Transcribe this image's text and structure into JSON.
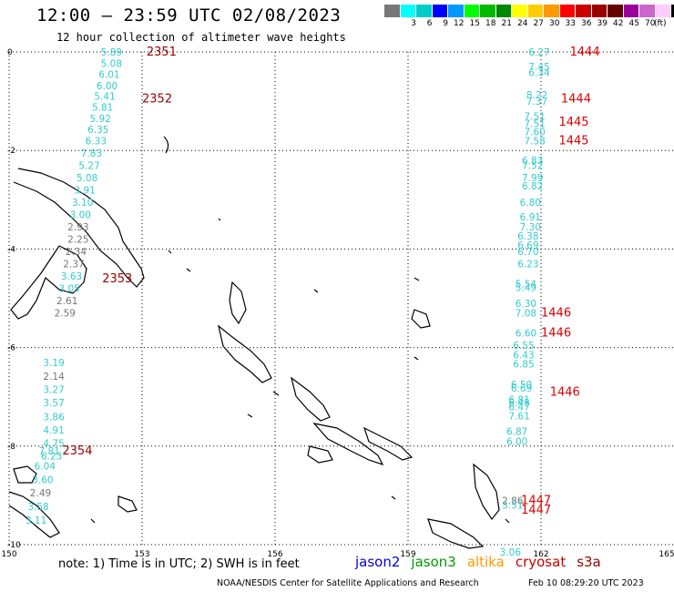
{
  "header": {
    "title": "12:00 – 23:59 UTC 02/08/2023",
    "subtitle": "12 hour collection of altimeter wave heights"
  },
  "colorbar": {
    "colors": [
      "#777777",
      "#00ffff",
      "#00cccc",
      "#0000ff",
      "#0099ff",
      "#00ff00",
      "#00bb00",
      "#008800",
      "#ffff00",
      "#ffcc00",
      "#ff9900",
      "#ff0000",
      "#cc0000",
      "#990000",
      "#660000",
      "#990099",
      "#cc66cc",
      "#ffccff",
      "#000000"
    ],
    "labels": [
      "3",
      "6",
      "9",
      "12",
      "15",
      "18",
      "21",
      "24",
      "27",
      "30",
      "33",
      "36",
      "39",
      "42",
      "45",
      "70"
    ],
    "unit": "(ft)"
  },
  "axes": {
    "x_ticks": [
      "150",
      "153",
      "156",
      "159",
      "162",
      "165"
    ],
    "y_ticks": [
      "0",
      "-2",
      "-4",
      "-6",
      "-8",
      "-10"
    ]
  },
  "wave_colors": {
    "cyan": "#33cccc",
    "gray": "#777777",
    "pass_left": "#990000",
    "pass_right": "#dd0000"
  },
  "passes": [
    {
      "label": "2351",
      "lon": 153.1,
      "lat": 0.0,
      "color": "pass_left"
    },
    {
      "label": "2352",
      "lon": 153.0,
      "lat": -0.95,
      "color": "pass_left"
    },
    {
      "label": "2353",
      "lon": 152.1,
      "lat": -4.6,
      "color": "pass_left"
    },
    {
      "label": "2354",
      "lon": 151.2,
      "lat": -8.1,
      "color": "pass_left"
    },
    {
      "label": "1444",
      "lon": 162.65,
      "lat": 0.0,
      "color": "pass_right"
    },
    {
      "label": "1444",
      "lon": 162.45,
      "lat": -0.95,
      "color": "pass_right"
    },
    {
      "label": "1445",
      "lon": 162.4,
      "lat": -1.42,
      "color": "pass_right"
    },
    {
      "label": "1445",
      "lon": 162.4,
      "lat": -1.8,
      "color": "pass_right"
    },
    {
      "label": "1446",
      "lon": 162.0,
      "lat": -5.3,
      "color": "pass_right"
    },
    {
      "label": "1446",
      "lon": 162.0,
      "lat": -5.7,
      "color": "pass_right"
    },
    {
      "label": "1446",
      "lon": 162.2,
      "lat": -6.9,
      "color": "pass_right"
    },
    {
      "label": "1447",
      "lon": 161.55,
      "lat": -9.1,
      "color": "pass_right"
    },
    {
      "label": "1447",
      "lon": 161.55,
      "lat": -9.3,
      "color": "pass_right"
    }
  ],
  "wave_heights": [
    {
      "v": "5.89",
      "lon": 152.35,
      "lat": 0.0,
      "c": "cyan"
    },
    {
      "v": "5.08",
      "lon": 152.35,
      "lat": -0.23,
      "c": "cyan"
    },
    {
      "v": "6.01",
      "lon": 152.3,
      "lat": -0.45,
      "c": "cyan"
    },
    {
      "v": "6.00",
      "lon": 152.25,
      "lat": -0.68,
      "c": "cyan"
    },
    {
      "v": "5.41",
      "lon": 152.2,
      "lat": -0.9,
      "c": "cyan"
    },
    {
      "v": "5.81",
      "lon": 152.15,
      "lat": -1.12,
      "c": "cyan"
    },
    {
      "v": "5.92",
      "lon": 152.1,
      "lat": -1.35,
      "c": "cyan"
    },
    {
      "v": "6.35",
      "lon": 152.05,
      "lat": -1.57,
      "c": "cyan"
    },
    {
      "v": "6.33",
      "lon": 152.0,
      "lat": -1.8,
      "c": "cyan"
    },
    {
      "v": "7.83",
      "lon": 151.9,
      "lat": -2.05,
      "c": "cyan"
    },
    {
      "v": "5.27",
      "lon": 151.85,
      "lat": -2.3,
      "c": "cyan"
    },
    {
      "v": "5.08",
      "lon": 151.8,
      "lat": -2.55,
      "c": "cyan"
    },
    {
      "v": "3.91",
      "lon": 151.75,
      "lat": -2.8,
      "c": "cyan"
    },
    {
      "v": "3.10",
      "lon": 151.7,
      "lat": -3.05,
      "c": "cyan"
    },
    {
      "v": "3.00",
      "lon": 151.65,
      "lat": -3.3,
      "c": "cyan"
    },
    {
      "v": "2.93",
      "lon": 151.6,
      "lat": -3.55,
      "c": "gray"
    },
    {
      "v": "2.25",
      "lon": 151.6,
      "lat": -3.8,
      "c": "gray"
    },
    {
      "v": "2.34",
      "lon": 151.55,
      "lat": -4.05,
      "c": "gray"
    },
    {
      "v": "2.37",
      "lon": 151.5,
      "lat": -4.3,
      "c": "gray"
    },
    {
      "v": "3.63",
      "lon": 151.45,
      "lat": -4.55,
      "c": "cyan"
    },
    {
      "v": "3.05",
      "lon": 151.4,
      "lat": -4.8,
      "c": "cyan"
    },
    {
      "v": "2.61",
      "lon": 151.35,
      "lat": -5.05,
      "c": "gray"
    },
    {
      "v": "2.59",
      "lon": 151.3,
      "lat": -5.3,
      "c": "gray"
    },
    {
      "v": "3.19",
      "lon": 151.05,
      "lat": -6.3,
      "c": "cyan"
    },
    {
      "v": "2.14",
      "lon": 151.05,
      "lat": -6.58,
      "c": "gray"
    },
    {
      "v": "3.27",
      "lon": 151.05,
      "lat": -6.85,
      "c": "cyan"
    },
    {
      "v": "3.57",
      "lon": 151.05,
      "lat": -7.12,
      "c": "cyan"
    },
    {
      "v": "3.86",
      "lon": 151.05,
      "lat": -7.4,
      "c": "cyan"
    },
    {
      "v": "4.91",
      "lon": 151.05,
      "lat": -7.67,
      "c": "cyan"
    },
    {
      "v": "4.75",
      "lon": 151.05,
      "lat": -7.94,
      "c": "cyan"
    },
    {
      "v": "6.23",
      "lon": 151.0,
      "lat": -8.2,
      "c": "cyan"
    },
    {
      "v": "7.81",
      "lon": 150.95,
      "lat": -8.1,
      "c": "cyan"
    },
    {
      "v": "6.04",
      "lon": 150.85,
      "lat": -8.4,
      "c": "cyan"
    },
    {
      "v": "3.60",
      "lon": 150.8,
      "lat": -8.68,
      "c": "cyan"
    },
    {
      "v": "2.49",
      "lon": 150.75,
      "lat": -8.95,
      "c": "gray"
    },
    {
      "v": "3.58",
      "lon": 150.7,
      "lat": -9.22,
      "c": "cyan"
    },
    {
      "v": "3.11",
      "lon": 150.65,
      "lat": -9.5,
      "c": "cyan"
    },
    {
      "v": "6.27",
      "lon": 162.0,
      "lat": 0.0,
      "c": "cyan"
    },
    {
      "v": "7.45",
      "lon": 162.0,
      "lat": -0.3,
      "c": "cyan"
    },
    {
      "v": "6.34",
      "lon": 162.0,
      "lat": -0.42,
      "c": "cyan"
    },
    {
      "v": "8.22",
      "lon": 161.95,
      "lat": -0.87,
      "c": "cyan"
    },
    {
      "v": "7.37",
      "lon": 161.95,
      "lat": -1.0,
      "c": "cyan"
    },
    {
      "v": "7.51",
      "lon": 161.9,
      "lat": -1.3,
      "c": "cyan"
    },
    {
      "v": "7.51",
      "lon": 161.9,
      "lat": -1.45,
      "c": "cyan"
    },
    {
      "v": "7.60",
      "lon": 161.9,
      "lat": -1.62,
      "c": "cyan"
    },
    {
      "v": "7.58",
      "lon": 161.9,
      "lat": -1.8,
      "c": "cyan"
    },
    {
      "v": "6.83",
      "lon": 161.85,
      "lat": -2.2,
      "c": "cyan"
    },
    {
      "v": "7.52",
      "lon": 161.85,
      "lat": -2.3,
      "c": "cyan"
    },
    {
      "v": "7.99",
      "lon": 161.85,
      "lat": -2.55,
      "c": "cyan"
    },
    {
      "v": "6.82",
      "lon": 161.85,
      "lat": -2.72,
      "c": "cyan"
    },
    {
      "v": "6.80",
      "lon": 161.8,
      "lat": -3.05,
      "c": "cyan"
    },
    {
      "v": "6.91",
      "lon": 161.8,
      "lat": -3.35,
      "c": "cyan"
    },
    {
      "v": "7.30",
      "lon": 161.8,
      "lat": -3.55,
      "c": "cyan"
    },
    {
      "v": "6.38",
      "lon": 161.75,
      "lat": -3.73,
      "c": "cyan"
    },
    {
      "v": "6.69",
      "lon": 161.75,
      "lat": -3.92,
      "c": "cyan"
    },
    {
      "v": "6.70",
      "lon": 161.75,
      "lat": -4.05,
      "c": "cyan"
    },
    {
      "v": "6.23",
      "lon": 161.75,
      "lat": -4.3,
      "c": "cyan"
    },
    {
      "v": "5.54",
      "lon": 161.7,
      "lat": -4.7,
      "c": "cyan"
    },
    {
      "v": "5.49",
      "lon": 161.7,
      "lat": -4.78,
      "c": "cyan"
    },
    {
      "v": "6.30",
      "lon": 161.7,
      "lat": -5.1,
      "c": "cyan"
    },
    {
      "v": "7.08",
      "lon": 161.7,
      "lat": -5.3,
      "c": "cyan"
    },
    {
      "v": "6.60",
      "lon": 161.7,
      "lat": -5.7,
      "c": "cyan"
    },
    {
      "v": "6.55",
      "lon": 161.65,
      "lat": -5.95,
      "c": "cyan"
    },
    {
      "v": "6.43",
      "lon": 161.65,
      "lat": -6.15,
      "c": "cyan"
    },
    {
      "v": "6.85",
      "lon": 161.65,
      "lat": -6.33,
      "c": "cyan"
    },
    {
      "v": "6.50",
      "lon": 161.6,
      "lat": -6.75,
      "c": "cyan"
    },
    {
      "v": "6.69",
      "lon": 161.6,
      "lat": -6.82,
      "c": "cyan"
    },
    {
      "v": "6.81",
      "lon": 161.55,
      "lat": -7.05,
      "c": "cyan"
    },
    {
      "v": "6.48",
      "lon": 161.55,
      "lat": -7.12,
      "c": "cyan"
    },
    {
      "v": "6.47",
      "lon": 161.55,
      "lat": -7.2,
      "c": "cyan"
    },
    {
      "v": "7.61",
      "lon": 161.55,
      "lat": -7.38,
      "c": "cyan"
    },
    {
      "v": "6.87",
      "lon": 161.5,
      "lat": -7.7,
      "c": "cyan"
    },
    {
      "v": "6.00",
      "lon": 161.5,
      "lat": -7.9,
      "c": "cyan"
    },
    {
      "v": "2.86",
      "lon": 161.4,
      "lat": -9.1,
      "c": "gray"
    },
    {
      "v": "3.51",
      "lon": 161.4,
      "lat": -9.2,
      "c": "cyan"
    },
    {
      "v": "3.06",
      "lon": 161.35,
      "lat": -10.15,
      "c": "cyan"
    }
  ],
  "note": "note:  1) Time is in UTC;  2) SWH is in feet",
  "legend": [
    {
      "label": "jason2",
      "color": "#0000dd"
    },
    {
      "label": "jason3",
      "color": "#009900"
    },
    {
      "label": "altika",
      "color": "#ff9900"
    },
    {
      "label": "cryosat",
      "color": "#cc0000"
    },
    {
      "label": "s3a",
      "color": "#990000"
    }
  ],
  "footer": {
    "credit": "NOAA/NESDIS Center for Satellite Applications and Research",
    "timestamp": "Feb 10 08:29:20 UTC 2023"
  }
}
